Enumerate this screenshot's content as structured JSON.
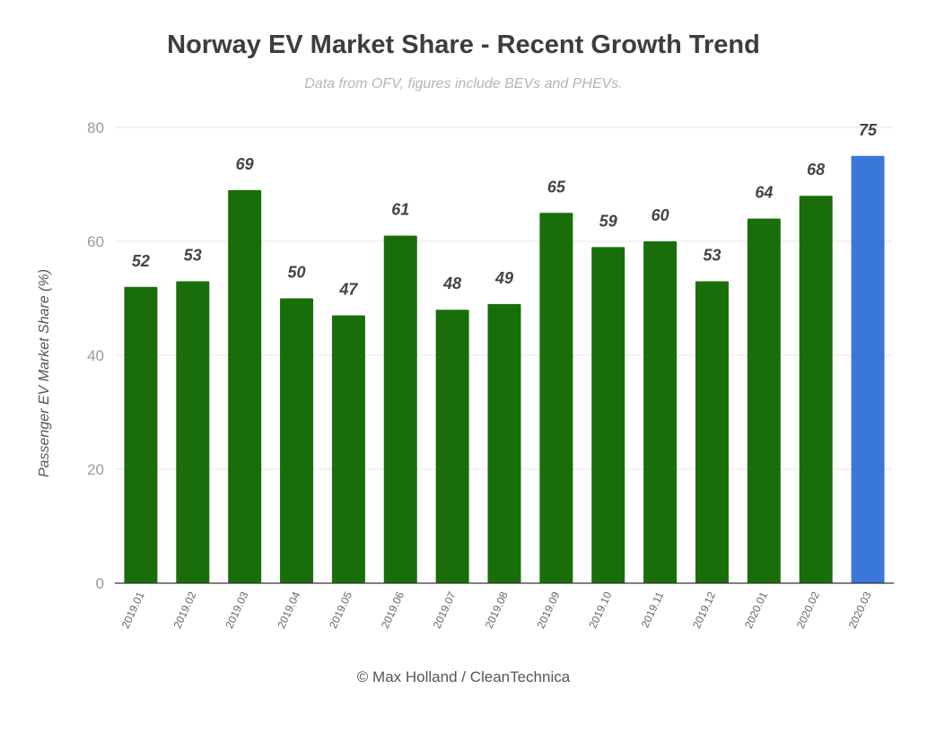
{
  "title": "Norway EV Market Share - Recent Growth Trend",
  "subtitle": "Data from OFV, figures include BEVs and PHEVs.",
  "credit": "© Max Holland / CleanTechnica",
  "colors": {
    "bar": "#1a6e0a",
    "highlight_bar": "#3a78d8",
    "grid": "#e6e6e6",
    "axis": "#333333",
    "tick_text": "#999999",
    "label_text": "#444444"
  },
  "chart_data": {
    "type": "bar",
    "categories": [
      "2019.01",
      "2019.02",
      "2019.03",
      "2019.04",
      "2019.05",
      "2019.06",
      "2019.07",
      "2019.08",
      "2019.09",
      "2019.10",
      "2019.11",
      "2019.12",
      "2020.01",
      "2020.02",
      "2020.03"
    ],
    "values": [
      52,
      53,
      69,
      50,
      47,
      61,
      48,
      49,
      65,
      59,
      60,
      53,
      64,
      68,
      75
    ],
    "highlight_category": "2020.03",
    "xlabel": "",
    "ylabel": "Passenger EV Market Share (%)",
    "ylim": [
      0,
      80
    ],
    "yticks": [
      0,
      20,
      40,
      60,
      80
    ],
    "grid": true,
    "data_labels": true
  }
}
